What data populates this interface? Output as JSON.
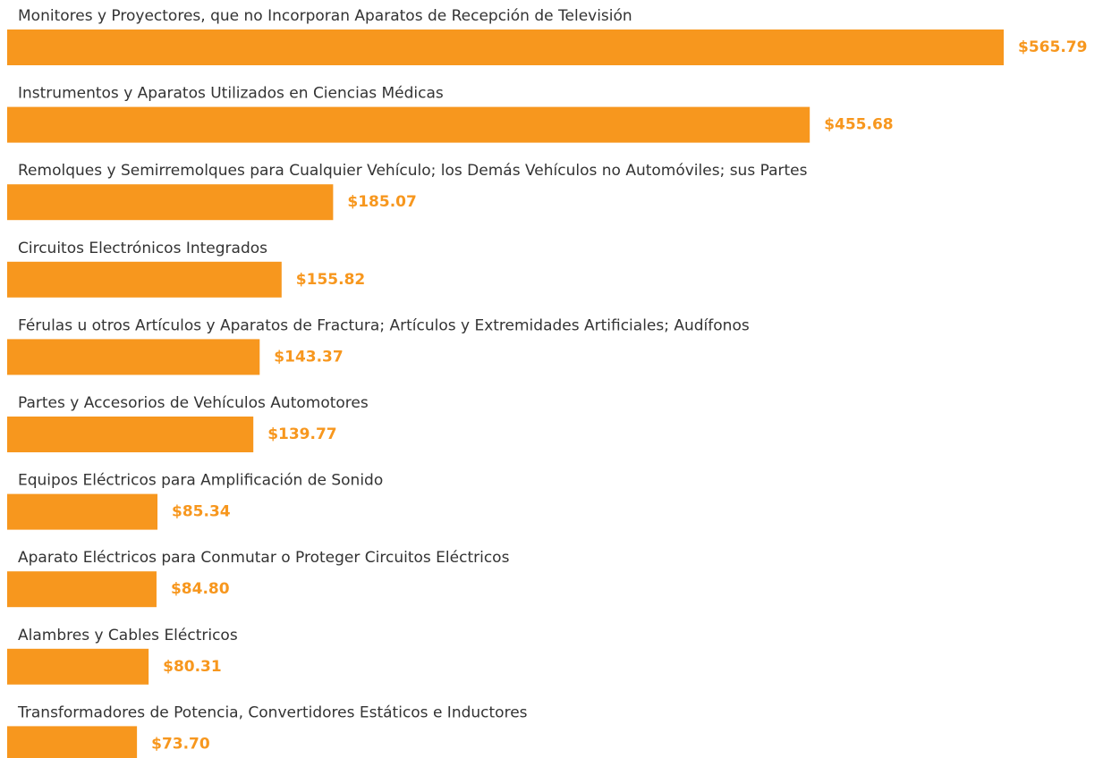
{
  "chart_data": {
    "type": "hbar",
    "color": "#f7971e",
    "categories": [
      "Monitores y Proyectores, que no Incorporan Aparatos de Recepción de Televisión",
      "Instrumentos y Aparatos Utilizados en Ciencias Médicas",
      "Remolques y Semirremolques para Cualquier Vehículo; los Demás Vehículos no Automóviles; sus Partes",
      "Circuitos Electrónicos Integrados",
      "Férulas u otros Artículos y Aparatos de Fractura; Artículos y Extremidades Artificiales; Audífonos",
      "Partes y Accesorios de Vehículos Automotores",
      "Equipos Eléctricos para Amplificación de Sonido",
      "Aparato Eléctricos para Conmutar o Proteger Circuitos Eléctricos",
      "Alambres y Cables Eléctricos",
      "Transformadores de Potencia, Convertidores Estáticos e Inductores"
    ],
    "values": [
      565.79,
      455.68,
      185.07,
      155.82,
      143.37,
      139.77,
      85.34,
      84.8,
      80.31,
      73.7
    ],
    "value_labels": [
      "$565.79",
      "$455.68",
      "$185.07",
      "$155.82",
      "$143.37",
      "$139.77",
      "$85.34",
      "$84.80",
      "$80.31",
      "$73.70"
    ]
  }
}
